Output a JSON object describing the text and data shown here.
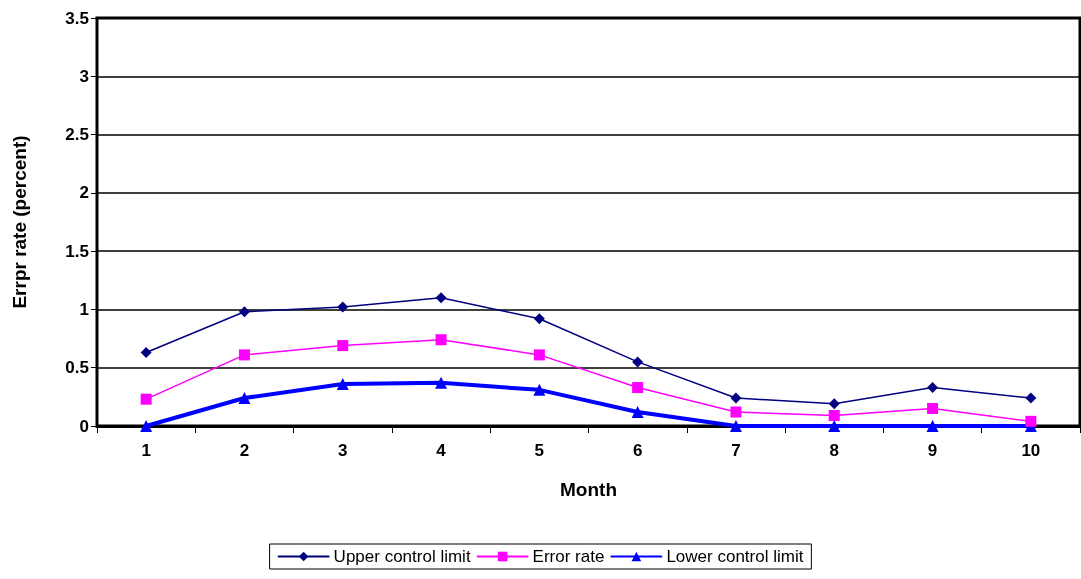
{
  "chart_data": {
    "type": "line",
    "xlabel": "Month",
    "ylabel": "Errpr rate (percent)",
    "categories": [
      "1",
      "2",
      "3",
      "4",
      "5",
      "6",
      "7",
      "8",
      "9",
      "10"
    ],
    "series": [
      {
        "name": "Upper control limit",
        "color": "#000080",
        "marker": "diamond",
        "values": [
          0.63,
          0.98,
          1.02,
          1.1,
          0.92,
          0.55,
          0.24,
          0.19,
          0.33,
          0.24
        ]
      },
      {
        "name": "Error rate",
        "color": "#ff00ff",
        "marker": "square",
        "values": [
          0.23,
          0.61,
          0.69,
          0.74,
          0.61,
          0.33,
          0.12,
          0.09,
          0.15,
          0.04
        ]
      },
      {
        "name": "Lower control limit",
        "color": "#0000ff",
        "marker": "triangle",
        "values": [
          0,
          0.24,
          0.36,
          0.37,
          0.31,
          0.12,
          0,
          0,
          0,
          0
        ]
      }
    ],
    "ylim": [
      0,
      3.5
    ],
    "yticks": [
      0,
      0.5,
      1,
      1.5,
      2,
      2.5,
      3,
      3.5
    ],
    "grid": "y",
    "legend": "bottom"
  }
}
